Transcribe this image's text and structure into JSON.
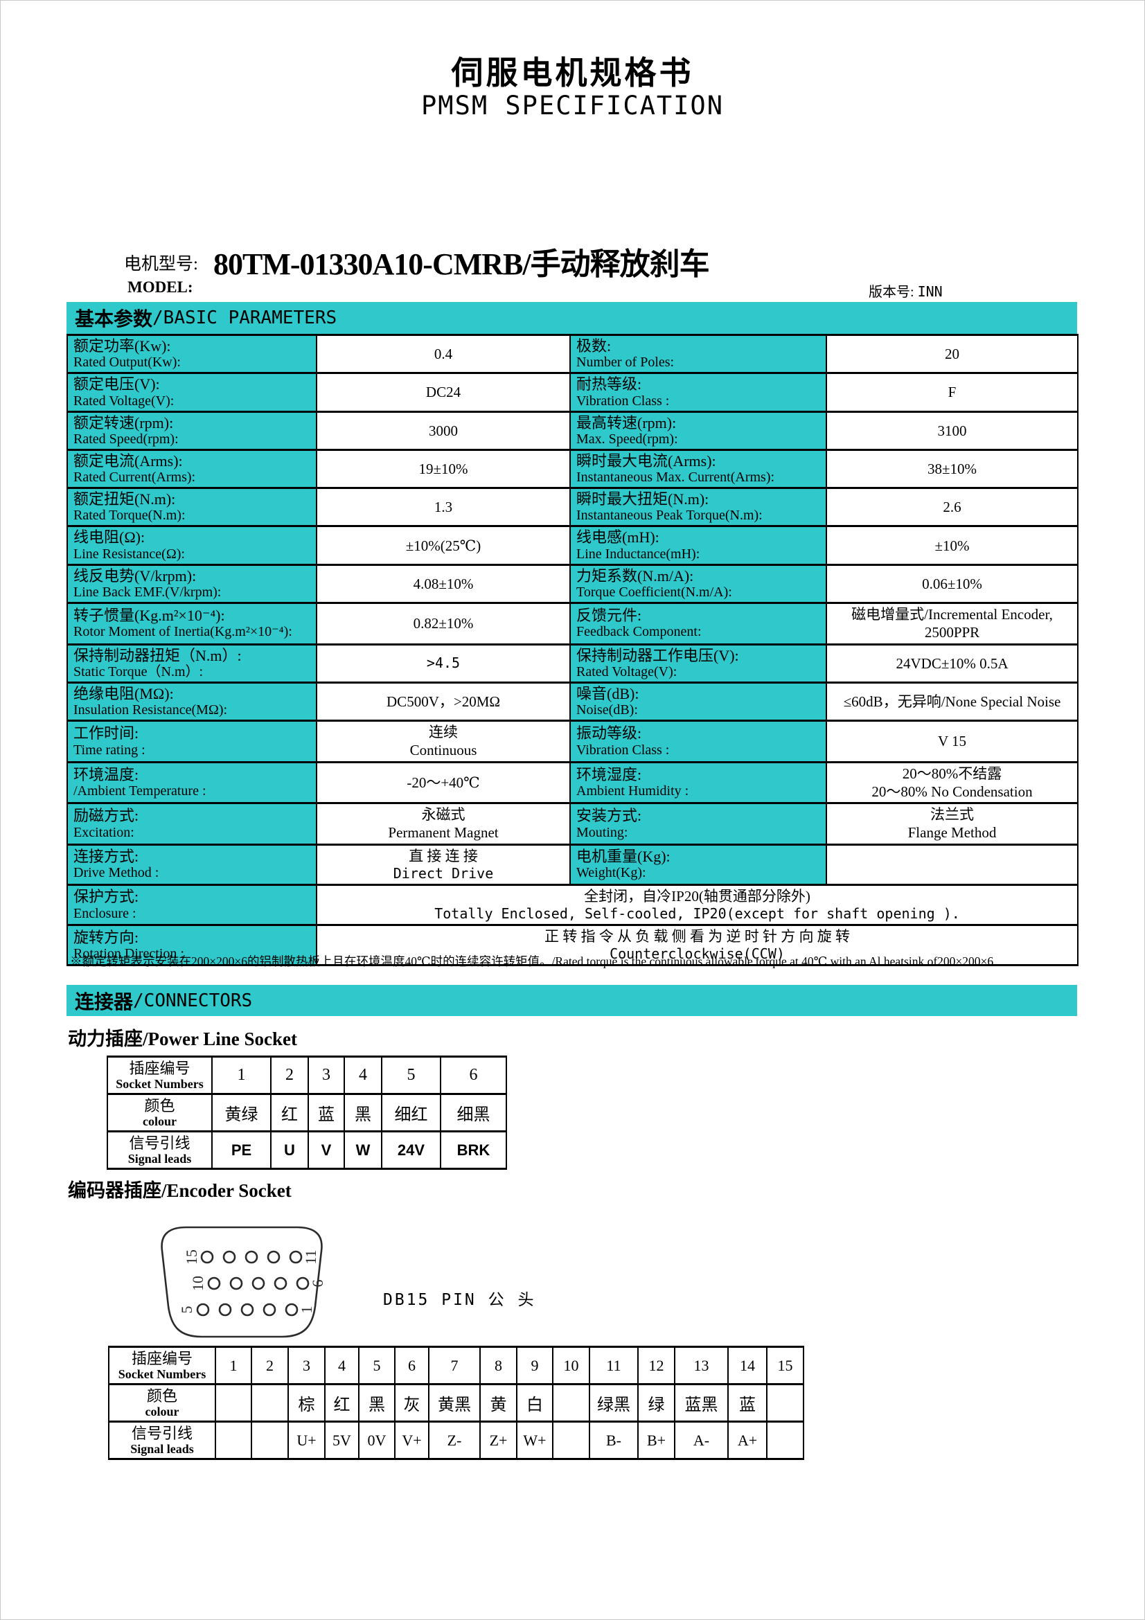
{
  "colors": {
    "accent": "#2fc8cb"
  },
  "page": {
    "title_cn": "伺服电机规格书",
    "title_en": "PMSM SPECIFICATION"
  },
  "model": {
    "label_cn": "电机型号:",
    "label_en": "MODEL:",
    "value": "80TM-01330A10-CMRB/手动释放刹车",
    "version_label": "版本号: ",
    "version_value": "INN"
  },
  "basic": {
    "section_cn": "基本参数",
    "section_en": "/BASIC PARAMETERS",
    "rows": [
      {
        "l1_cn": "额定功率(Kw):",
        "l1_en": "Rated Output(Kw):",
        "v1": [
          "0.4"
        ],
        "l2_cn": "极数:",
        "l2_en": "Number of Poles:",
        "v2": [
          "20"
        ]
      },
      {
        "l1_cn": "额定电压(V):",
        "l1_en": "Rated Voltage(V):",
        "v1": [
          "DC24"
        ],
        "l2_cn": "耐热等级:",
        "l2_en": "Vibration Class :",
        "v2": [
          "F"
        ]
      },
      {
        "l1_cn": "额定转速(rpm):",
        "l1_en": "Rated Speed(rpm):",
        "v1": [
          "3000"
        ],
        "l2_cn": "最高转速(rpm):",
        "l2_en": "Max. Speed(rpm):",
        "v2": [
          "3100"
        ]
      },
      {
        "l1_cn": "额定电流(Arms):",
        "l1_en": "Rated Current(Arms):",
        "v1": [
          "19±10%"
        ],
        "l2_cn": "瞬时最大电流(Arms):",
        "l2_en": "Instantaneous Max. Current(Arms):",
        "v2": [
          "38±10%"
        ]
      },
      {
        "l1_cn": "额定扭矩(N.m):",
        "l1_en": "Rated Torque(N.m):",
        "v1": [
          "1.3"
        ],
        "l2_cn": "瞬时最大扭矩(N.m):",
        "l2_en": "Instantaneous Peak Torque(N.m):",
        "v2": [
          "2.6"
        ]
      },
      {
        "l1_cn": "线电阻(Ω):",
        "l1_en": "Line Resistance(Ω):",
        "v1": [
          "±10%(25℃)"
        ],
        "l2_cn": "线电感(mH):",
        "l2_en": "Line Inductance(mH):",
        "v2": [
          "±10%"
        ]
      },
      {
        "l1_cn": "线反电势(V/krpm):",
        "l1_en": "Line Back EMF.(V/krpm):",
        "v1": [
          "4.08±10%"
        ],
        "l2_cn": "力矩系数(N.m/A):",
        "l2_en": "Torque Coefficient(N.m/A):",
        "v2": [
          "0.06±10%"
        ]
      },
      {
        "l1_cn": "转子惯量(Kg.m²×10⁻⁴):",
        "l1_en": "Rotor Moment of Inertia(Kg.m²×10⁻⁴):",
        "v1": [
          "0.82±10%"
        ],
        "l2_cn": "反馈元件:",
        "l2_en": "Feedback Component:",
        "v2": [
          "磁电增量式/Incremental Encoder,",
          "2500PPR"
        ]
      },
      {
        "l1_cn": "保持制动器扭矩（N.m）:",
        "l1_en": "Static Torque（N.m）:",
        "v1": [
          {
            "t": ">4.5",
            "m": true
          }
        ],
        "l2_cn": "保持制动器工作电压(V):",
        "l2_en": "Rated Voltage(V):",
        "v2": [
          "24VDC±10%  0.5A"
        ]
      },
      {
        "l1_cn": "绝缘电阻(MΩ):",
        "l1_en": "Insulation Resistance(MΩ):",
        "v1": [
          "DC500V，>20MΩ"
        ],
        "l2_cn": "噪音(dB):",
        "l2_en": "Noise(dB):",
        "v2": [
          "≤60dB，无异响/None Special Noise"
        ]
      },
      {
        "l1_cn": "工作时间:",
        "l1_en": "Time rating :",
        "v1": [
          "连续",
          "Continuous"
        ],
        "l2_cn": "振动等级:",
        "l2_en": "Vibration Class :",
        "v2": [
          "V 15"
        ]
      },
      {
        "l1_cn": "环境温度:",
        "l1_en": "/Ambient Temperature :",
        "v1": [
          "-20～+40℃"
        ],
        "l2_cn": "环境湿度:",
        "l2_en": "Ambient Humidity :",
        "v2": [
          "20～80%不结露",
          "20～80% No Condensation"
        ]
      },
      {
        "l1_cn": "励磁方式:",
        "l1_en": "Excitation:",
        "v1": [
          "永磁式",
          "Permanent Magnet"
        ],
        "l2_cn": "安装方式:",
        "l2_en": "Mouting:",
        "v2": [
          "法兰式",
          "Flange Method"
        ]
      },
      {
        "l1_cn": "连接方式:",
        "l1_en": "Drive Method :",
        "v1": [
          "直 接 连 接",
          {
            "t": "Direct Drive",
            "m": true
          }
        ],
        "l2_cn": "电机重量(Kg):",
        "l2_en": "Weight(Kg):",
        "v2": []
      },
      {
        "l1_cn": "保护方式:",
        "l1_en": "Enclosure :",
        "wide": true,
        "v1": [
          "全封闭，自冷IP20(轴贯通部分除外)",
          {
            "t": "Totally Enclosed, Self-cooled, IP20(except for shaft opening ).",
            "m": true
          }
        ]
      },
      {
        "l1_cn": "旋转方向:",
        "l1_en": "Rotation Direction :",
        "wide": true,
        "v1": [
          "正 转 指 令 从 负 载 侧 看 为 逆 时 针 方 向 旋 转",
          {
            "t": "Counterclockwise(CCW)",
            "m": true
          }
        ]
      }
    ],
    "footnote": "※额定转矩表示安装在200×200×6的铝制散热板上且在环境温度40℃时的连续容许转矩值。/Rated torque is the continuous allowable torque at 40℃  with an Al heatsink of200×200×6."
  },
  "connectors": {
    "section_cn": "连接器",
    "section_en": "/CONNECTORS",
    "power": {
      "heading_cn": "动力插座/",
      "heading_en": "Power Line Socket",
      "row_headers": [
        {
          "cn": "插座编号",
          "en": "Socket Numbers"
        },
        {
          "cn": "颜色",
          "en": "colour"
        },
        {
          "cn": "信号引线",
          "en": "Signal leads"
        }
      ],
      "numbers": [
        "1",
        "2",
        "3",
        "4",
        "5",
        "6"
      ],
      "colours": [
        "黄绿",
        "红",
        "蓝",
        "黑",
        "细红",
        "细黑"
      ],
      "signals": [
        "PE",
        "U",
        "V",
        "W",
        "24V",
        "BRK"
      ]
    },
    "encoder": {
      "heading_cn": "编码器插座/",
      "heading_en": "Encoder Socket",
      "db15_caption": "DB15 PIN 公 头",
      "pin_labels_left": [
        "15",
        "10",
        "5"
      ],
      "pin_labels_right": [
        "11",
        "6",
        "1"
      ],
      "row_headers": [
        {
          "cn": "插座编号",
          "en": "Socket Numbers"
        },
        {
          "cn": "颜色",
          "en": "colour"
        },
        {
          "cn": "信号引线",
          "en": "Signal leads"
        }
      ],
      "numbers": [
        "1",
        "2",
        "3",
        "4",
        "5",
        "6",
        "7",
        "8",
        "9",
        "10",
        "11",
        "12",
        "13",
        "14",
        "15"
      ],
      "colours": [
        "",
        "",
        "棕",
        "红",
        "黑",
        "灰",
        "黄黑",
        "黄",
        "白",
        "",
        "绿黑",
        "绿",
        "蓝黑",
        "蓝",
        ""
      ],
      "signals": [
        "",
        "",
        "U+",
        "5V",
        "0V",
        "V+",
        "Z-",
        "Z+",
        "W+",
        "",
        "B-",
        "B+",
        "A-",
        "A+",
        ""
      ]
    }
  }
}
